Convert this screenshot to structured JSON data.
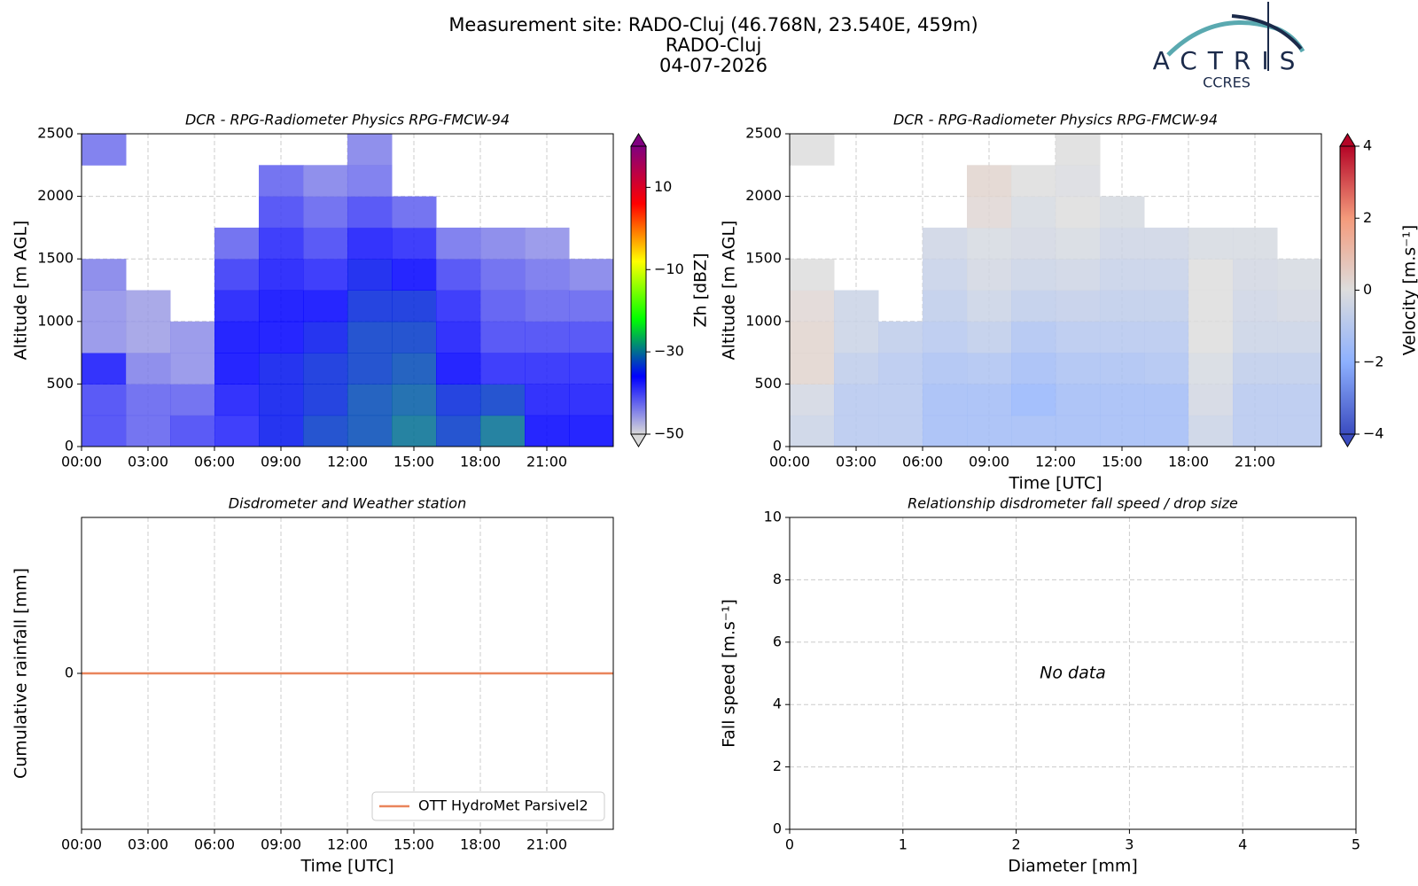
{
  "header": {
    "title": [
      "Measurement site: RADO-Cluj (46.768N, 23.540E, 459m)",
      "RADO-Cluj",
      "04-07-2026"
    ],
    "logo": "ACTRIS",
    "logo_subtitle": "CCRES"
  },
  "chart_data": [
    {
      "type": "heatmap",
      "title": "DCR - RPG-Radiometer Physics RPG-FMCW-94",
      "y_label": "Altitude [m AGL]",
      "x": [
        0,
        2,
        4,
        6,
        8,
        10,
        12,
        14,
        16,
        18,
        20,
        22
      ],
      "y": [
        0,
        250,
        500,
        750,
        1000,
        1250,
        1500,
        1750,
        2000,
        2250
      ],
      "z": [
        [
          -40,
          -42,
          -40,
          -38,
          -35,
          -33,
          -32,
          -30,
          -33,
          -30,
          -36,
          -36
        ],
        [
          -40,
          -42,
          -42,
          -37,
          -35,
          -34,
          -32,
          -31,
          -34,
          -33,
          -37,
          -37
        ],
        [
          -37,
          -44,
          -45,
          -36,
          -35,
          -34,
          -33,
          -32,
          -36,
          -38,
          -38,
          -38
        ],
        [
          -45,
          -46,
          -45,
          -36,
          -36,
          -35,
          -33,
          -33,
          -37,
          -40,
          -40,
          -40
        ],
        [
          -45,
          -46,
          null,
          -37,
          -36,
          -36,
          -34,
          -34,
          -38,
          -41,
          -42,
          -42
        ],
        [
          -44,
          null,
          null,
          -39,
          -37,
          -38,
          -35,
          -36,
          -40,
          -42,
          -43,
          -44
        ],
        [
          null,
          null,
          null,
          -42,
          -38,
          -40,
          -37,
          -38,
          -43,
          -44,
          -45,
          null
        ],
        [
          null,
          null,
          null,
          null,
          -40,
          -42,
          -40,
          -42,
          null,
          null,
          null,
          null
        ],
        [
          null,
          null,
          null,
          null,
          -42,
          -44,
          -43,
          null,
          null,
          null,
          null,
          null
        ],
        [
          -43,
          null,
          null,
          null,
          null,
          null,
          -44,
          null,
          null,
          null,
          null,
          null
        ]
      ],
      "xlim": [
        0,
        24
      ],
      "ylim": [
        0,
        2500
      ],
      "xticks": [
        {
          "value": 0,
          "label": "00:00"
        },
        {
          "value": 3,
          "label": "03:00"
        },
        {
          "value": 6,
          "label": "06:00"
        },
        {
          "value": 9,
          "label": "09:00"
        },
        {
          "value": 12,
          "label": "12:00"
        },
        {
          "value": 15,
          "label": "15:00"
        },
        {
          "value": 18,
          "label": "18:00"
        },
        {
          "value": 21,
          "label": "21:00"
        }
      ],
      "yticks": [
        0,
        500,
        1000,
        1500,
        2000,
        2500
      ],
      "grid": true,
      "colorbar_label": "Zh [dBZ]",
      "zlim": [
        -50,
        20
      ],
      "zticks": [
        {
          "value": -50,
          "label": "−50"
        },
        {
          "value": -30,
          "label": "−30"
        },
        {
          "value": -10,
          "label": "−10"
        },
        10
      ],
      "colormap": [
        "#d9d9d9",
        "#0000ff",
        "#00ff00",
        "#ffff00",
        "#ff0000",
        "#800080"
      ]
    },
    {
      "type": "heatmap",
      "title": "DCR - RPG-Radiometer Physics RPG-FMCW-94",
      "y_label": "Altitude [m AGL]",
      "x_label": "Time [UTC]",
      "x": [
        0,
        2,
        4,
        6,
        8,
        10,
        12,
        14,
        16,
        18,
        20,
        22
      ],
      "y": [
        0,
        250,
        500,
        750,
        1000,
        1250,
        1500,
        1750,
        2000,
        2250
      ],
      "z": [
        [
          -0.5,
          -1,
          -1,
          -1.5,
          -1.5,
          -1.5,
          -1.5,
          -1.5,
          -1.5,
          -0.5,
          -1,
          -1
        ],
        [
          -0.3,
          -1,
          -1,
          -1.5,
          -1.5,
          -1.8,
          -1.5,
          -1.5,
          -1.5,
          -0.3,
          -1,
          -1
        ],
        [
          0.3,
          -0.8,
          -1,
          -1.3,
          -1.2,
          -1.5,
          -1.3,
          -1.3,
          -1.2,
          -0.2,
          -0.8,
          -0.8
        ],
        [
          0.3,
          -0.5,
          -0.8,
          -1,
          -0.8,
          -1.2,
          -1,
          -1,
          -1,
          0,
          -0.5,
          -0.5
        ],
        [
          0.2,
          -0.5,
          null,
          -0.8,
          -0.5,
          -0.8,
          -0.7,
          -0.8,
          -0.8,
          0,
          -0.4,
          -0.3
        ],
        [
          0,
          null,
          null,
          -0.6,
          -0.3,
          -0.5,
          -0.4,
          -0.6,
          -0.6,
          0,
          -0.3,
          -0.2
        ],
        [
          null,
          null,
          null,
          -0.4,
          -0.2,
          -0.3,
          -0.2,
          -0.4,
          -0.4,
          -0.2,
          -0.2,
          null
        ],
        [
          null,
          null,
          null,
          null,
          0.2,
          -0.2,
          0,
          -0.2,
          null,
          null,
          null,
          null
        ],
        [
          null,
          null,
          null,
          null,
          0.3,
          0,
          -0.1,
          null,
          null,
          null,
          null,
          null
        ],
        [
          0,
          null,
          null,
          null,
          null,
          null,
          0,
          null,
          null,
          null,
          null,
          null
        ]
      ],
      "xlim": [
        0,
        24
      ],
      "ylim": [
        0,
        2500
      ],
      "xticks": [
        {
          "value": 0,
          "label": "00:00"
        },
        {
          "value": 3,
          "label": "03:00"
        },
        {
          "value": 6,
          "label": "06:00"
        },
        {
          "value": 9,
          "label": "09:00"
        },
        {
          "value": 12,
          "label": "12:00"
        },
        {
          "value": 15,
          "label": "15:00"
        },
        {
          "value": 18,
          "label": "18:00"
        },
        {
          "value": 21,
          "label": "21:00"
        }
      ],
      "yticks": [
        0,
        500,
        1000,
        1500,
        2000,
        2500
      ],
      "grid": true,
      "colorbar_label": "Velocity [m.s⁻¹]",
      "zlim": [
        -4,
        4
      ],
      "zticks": [
        {
          "value": -4,
          "label": "−4"
        },
        {
          "value": -2,
          "label": "−2"
        },
        0,
        2,
        4
      ],
      "colormap": [
        "#3b4cc0",
        "#8db0fe",
        "#dddddd",
        "#f49a7b",
        "#b40426"
      ]
    },
    {
      "type": "line",
      "title": "Disdrometer and Weather station",
      "y_label": "Cumulative rainfall [mm]",
      "x_label": "Time [UTC]",
      "x": [
        0,
        24
      ],
      "series": [
        {
          "name": "OTT HydroMet Parsivel2",
          "color": "#e9845b",
          "values": [
            0,
            0
          ]
        }
      ],
      "xlim": [
        0,
        24
      ],
      "ylim": [
        -1,
        1
      ],
      "xticks": [
        {
          "value": 0,
          "label": "00:00"
        },
        {
          "value": 3,
          "label": "03:00"
        },
        {
          "value": 6,
          "label": "06:00"
        },
        {
          "value": 9,
          "label": "09:00"
        },
        {
          "value": 12,
          "label": "12:00"
        },
        {
          "value": 15,
          "label": "15:00"
        },
        {
          "value": 18,
          "label": "18:00"
        },
        {
          "value": 21,
          "label": "21:00"
        }
      ],
      "yticks": [
        0
      ],
      "grid": true,
      "legend": "lower right"
    },
    {
      "type": "scatter",
      "title": "Relationship disdrometer fall speed / drop size",
      "y_label": "Fall speed [m.s⁻¹]",
      "x_label": "Diameter [mm]",
      "annotation": "No data",
      "xlim": [
        0,
        5
      ],
      "ylim": [
        0,
        10
      ],
      "xticks": [
        0,
        1,
        2,
        3,
        4,
        5
      ],
      "yticks": [
        0,
        2,
        4,
        6,
        8,
        10
      ],
      "grid": true
    }
  ]
}
